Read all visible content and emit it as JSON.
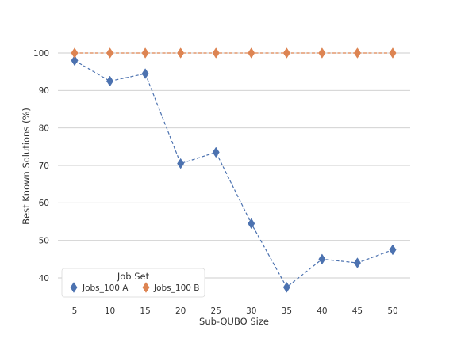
{
  "chart_data": {
    "type": "line",
    "title": "",
    "xlabel": "Sub-QUBO Size",
    "ylabel": "Best Known Solutions (%)",
    "x": [
      5,
      10,
      15,
      20,
      25,
      30,
      35,
      40,
      45,
      50
    ],
    "yticks": [
      40,
      50,
      60,
      70,
      80,
      90,
      100
    ],
    "ylim": [
      35,
      105
    ],
    "grid": "horizontal",
    "legend": {
      "title": "Job Set",
      "placement": "lower-left"
    },
    "series": [
      {
        "name": "Jobs_100 A",
        "color": "#4c72b0",
        "marker": "diamond",
        "linestyle": "dashed",
        "values": [
          98,
          92.5,
          94.5,
          70.5,
          73.5,
          54.5,
          37.5,
          45,
          44,
          47.5
        ]
      },
      {
        "name": "Jobs_100 B",
        "color": "#dd8452",
        "marker": "diamond",
        "linestyle": "dashed",
        "values": [
          100,
          100,
          100,
          100,
          100,
          100,
          100,
          100,
          100,
          100
        ]
      }
    ]
  }
}
